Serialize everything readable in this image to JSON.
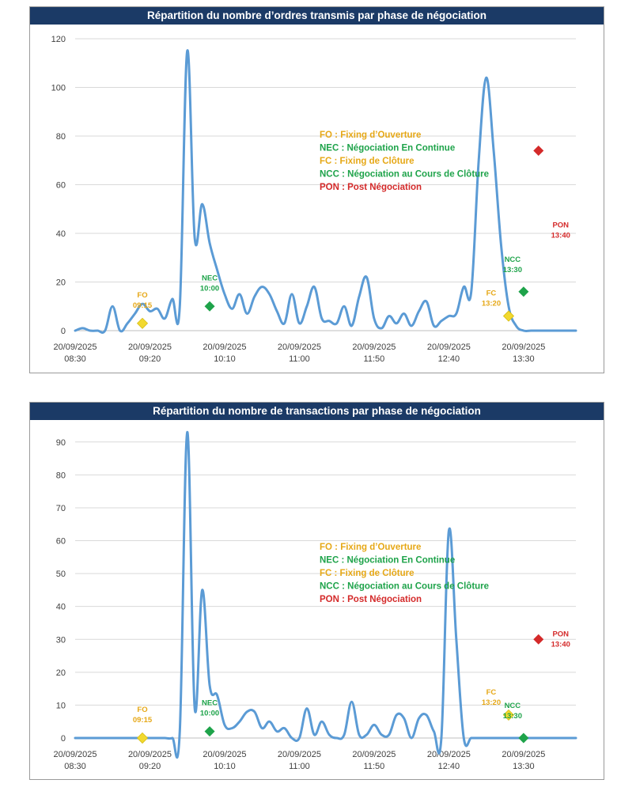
{
  "chart_data": [
    {
      "type": "line",
      "title": "Répartition du nombre d’ordres transmis par phase de négociation",
      "ylim": [
        0,
        120
      ],
      "y_ticks": [
        0,
        20,
        40,
        60,
        80,
        100,
        120
      ],
      "x_tick_labels": [
        [
          "20/09/2025",
          "08:30"
        ],
        [
          "20/09/2025",
          "09:20"
        ],
        [
          "20/09/2025",
          "10:10"
        ],
        [
          "20/09/2025",
          "11:00"
        ],
        [
          "20/09/2025",
          "11:50"
        ],
        [
          "20/09/2025",
          "12:40"
        ],
        [
          "20/09/2025",
          "13:30"
        ]
      ],
      "grid": "horizontal",
      "line_color": "#5b9bd5",
      "x_unit": "minutes since 08:30",
      "series": [
        {
          "x": [
            0,
            5,
            10,
            15,
            20,
            25,
            30,
            35,
            40,
            45,
            50,
            55,
            60,
            65,
            70,
            75,
            80,
            85,
            90,
            95,
            100,
            105,
            110,
            115,
            120,
            125,
            130,
            135,
            140,
            145,
            150,
            155,
            160,
            165,
            170,
            175,
            180,
            185,
            190,
            195,
            200,
            205,
            210,
            215,
            220,
            225,
            230,
            235,
            240,
            245,
            250,
            255,
            260,
            265,
            270,
            275,
            280,
            285,
            290,
            295,
            300,
            305,
            310,
            315,
            320,
            325,
            330,
            335
          ],
          "values": [
            0,
            1,
            0,
            0,
            0,
            10,
            0,
            3,
            7,
            11,
            8,
            9,
            5,
            13,
            10,
            115,
            38,
            52,
            36,
            25,
            15,
            9,
            15,
            7,
            14,
            18,
            15,
            8,
            3,
            15,
            3,
            10,
            18,
            5,
            4,
            3,
            10,
            2,
            14,
            22,
            5,
            1,
            6,
            3,
            7,
            2,
            8,
            12,
            2,
            4,
            6,
            7,
            18,
            16,
            70,
            104,
            74,
            35,
            10,
            2,
            0,
            0,
            0,
            0,
            0,
            0,
            0,
            0
          ]
        }
      ],
      "markers": [
        {
          "code": "FO",
          "label": "FO",
          "time": "09:15",
          "x": 45,
          "y": 3,
          "color": "#f2d92f",
          "text_color": "#e6a817",
          "side": "above"
        },
        {
          "code": "NEC",
          "label": "NEC",
          "time": "10:00",
          "x": 90,
          "y": 10,
          "color": "#1ea34a",
          "text_color": "#1ea34a",
          "side": "above"
        },
        {
          "code": "FC",
          "label": "FC",
          "time": "13:20",
          "x": 290,
          "y": 6,
          "color": "#f2d92f",
          "text_color": "#e6a817",
          "side": "above"
        },
        {
          "code": "NCC",
          "label": "NCC",
          "time": "13:30",
          "x": 300,
          "y": 16,
          "color": "#1ea34a",
          "text_color": "#1ea34a",
          "side": "above"
        },
        {
          "code": "PON",
          "label": "PON",
          "time": "13:40",
          "x": 310,
          "y": 74,
          "color": "#d42a2a",
          "text_color": "#d42a2a",
          "side": "right"
        }
      ],
      "legend": [
        {
          "text": "FO : Fixing d’Ouverture",
          "color": "#e6a817"
        },
        {
          "text": "NEC : Négociation En Continue",
          "color": "#1ea34a"
        },
        {
          "text": "FC : Fixing de Clôture",
          "color": "#e6a817"
        },
        {
          "text": "NCC : Négociation au Cours de Clôture",
          "color": "#1ea34a"
        },
        {
          "text": "PON : Post Négociation",
          "color": "#d42a2a"
        }
      ]
    },
    {
      "type": "line",
      "title": "Répartition du nombre de transactions par phase de négociation",
      "ylim": [
        0,
        95
      ],
      "y_ticks": [
        0,
        10,
        20,
        30,
        40,
        50,
        60,
        70,
        80,
        90
      ],
      "x_tick_labels": [
        [
          "20/09/2025",
          "08:30"
        ],
        [
          "20/09/2025",
          "09:20"
        ],
        [
          "20/09/2025",
          "10:10"
        ],
        [
          "20/09/2025",
          "11:00"
        ],
        [
          "20/09/2025",
          "11:50"
        ],
        [
          "20/09/2025",
          "12:40"
        ],
        [
          "20/09/2025",
          "13:30"
        ]
      ],
      "grid": "horizontal",
      "line_color": "#5b9bd5",
      "x_unit": "minutes since 08:30",
      "series": [
        {
          "x": [
            0,
            5,
            10,
            15,
            20,
            25,
            30,
            35,
            40,
            45,
            50,
            55,
            60,
            65,
            70,
            75,
            80,
            85,
            90,
            95,
            100,
            105,
            110,
            115,
            120,
            125,
            130,
            135,
            140,
            145,
            150,
            155,
            160,
            165,
            170,
            175,
            180,
            185,
            190,
            195,
            200,
            205,
            210,
            215,
            220,
            225,
            230,
            235,
            240,
            245,
            250,
            255,
            260,
            265,
            270,
            275,
            280,
            285,
            290,
            295,
            300,
            305,
            310,
            315,
            320,
            325,
            330,
            335
          ],
          "values": [
            0,
            0,
            0,
            0,
            0,
            0,
            0,
            0,
            0,
            0,
            0,
            0,
            0,
            0,
            2,
            93,
            9,
            45,
            16,
            13,
            4,
            3,
            5,
            8,
            8,
            3,
            5,
            2,
            3,
            0,
            0,
            9,
            1,
            5,
            1,
            0,
            1,
            11,
            1,
            1,
            4,
            1,
            1,
            7,
            6,
            0,
            6,
            7,
            2,
            0,
            63,
            30,
            0,
            0,
            0,
            0,
            0,
            0,
            0,
            0,
            0,
            0,
            0,
            0,
            0,
            0,
            0,
            0
          ]
        }
      ],
      "markers": [
        {
          "code": "FO",
          "label": "FO",
          "time": "09:15",
          "x": 45,
          "y": 0,
          "color": "#f2d92f",
          "text_color": "#e6a817",
          "side": "above"
        },
        {
          "code": "NEC",
          "label": "NEC",
          "time": "10:00",
          "x": 90,
          "y": 2,
          "color": "#1ea34a",
          "text_color": "#1ea34a",
          "side": "above"
        },
        {
          "code": "FC",
          "label": "FC",
          "time": "13:20",
          "x": 290,
          "y": 7,
          "color": "#f2d92f",
          "text_color": "#e6a817",
          "side": "above"
        },
        {
          "code": "NCC",
          "label": "NCC",
          "time": "13:30",
          "x": 300,
          "y": 0,
          "color": "#1ea34a",
          "text_color": "#1ea34a",
          "side": "above"
        },
        {
          "code": "PON",
          "label": "PON",
          "time": "13:40",
          "x": 310,
          "y": 30,
          "color": "#d42a2a",
          "text_color": "#d42a2a",
          "side": "right"
        }
      ],
      "legend": [
        {
          "text": "FO : Fixing d’Ouverture",
          "color": "#e6a817"
        },
        {
          "text": "NEC : Négociation En Continue",
          "color": "#1ea34a"
        },
        {
          "text": "FC : Fixing de Clôture",
          "color": "#e6a817"
        },
        {
          "text": "NCC : Négociation au Cours de Clôture",
          "color": "#1ea34a"
        },
        {
          "text": "PON : Post Négociation",
          "color": "#d42a2a"
        }
      ]
    }
  ]
}
